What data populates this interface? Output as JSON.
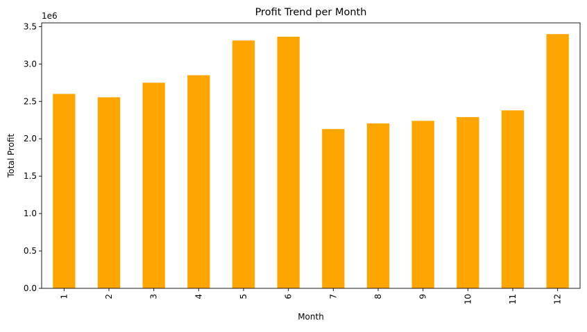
{
  "chart_data": {
    "type": "bar",
    "title": "Profit Trend per Month",
    "xlabel": "Month",
    "ylabel": "Total Profit",
    "y_offset_label": "1e6",
    "categories": [
      "1",
      "2",
      "3",
      "4",
      "5",
      "6",
      "7",
      "8",
      "9",
      "10",
      "11",
      "12"
    ],
    "values": [
      2600000,
      2555000,
      2750000,
      2850000,
      3315000,
      3365000,
      2130000,
      2205000,
      2240000,
      2290000,
      2380000,
      3400000
    ],
    "ylim": [
      0,
      3550000
    ],
    "yticks": [
      0,
      500000,
      1000000,
      1500000,
      2000000,
      2500000,
      3000000,
      3500000
    ],
    "ytick_labels": [
      "0.0",
      "0.5",
      "1.0",
      "1.5",
      "2.0",
      "2.5",
      "3.0",
      "3.5"
    ],
    "grid": false,
    "legend": "none",
    "bar_color": "#FFA500"
  }
}
